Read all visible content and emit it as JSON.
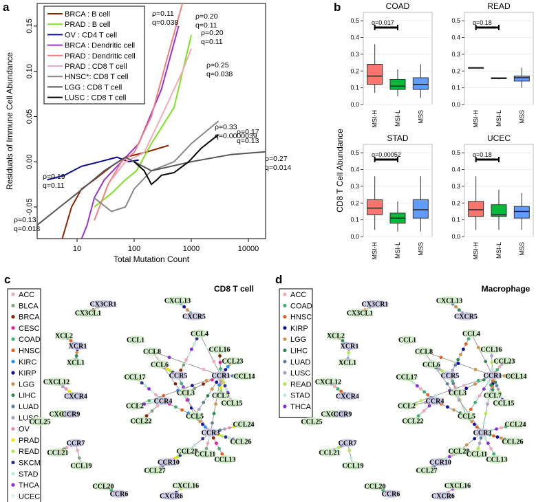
{
  "panels": {
    "a": "a",
    "b": "b",
    "c": "c",
    "d": "d"
  },
  "chart_data": [
    {
      "type": "line",
      "panel": "a",
      "xlabel": "Total Mutation Count",
      "ylabel": "Residuals of Immune Cell Abundance",
      "xscale": "log",
      "xlim": [
        2,
        20000
      ],
      "ylim": [
        -0.085,
        0.175
      ],
      "xticks": [
        "10",
        "100",
        "1000",
        "10000"
      ],
      "yticks": [
        "-0.05",
        "0.00",
        "0.05",
        "0.10",
        "0.15"
      ],
      "legend_position": "top-left",
      "series": [
        {
          "name": "BRCA : B cell",
          "color": "#8B2500",
          "points": [
            [
              5.5,
              -0.085
            ],
            [
              8,
              -0.05
            ],
            [
              12,
              -0.03
            ],
            [
              20,
              -0.02
            ],
            [
              40,
              -0.005
            ],
            [
              70,
              0.005
            ],
            [
              150,
              0.01
            ],
            [
              400,
              0.018
            ]
          ]
        },
        {
          "name": "PRAD : B cell",
          "color": "#7CE31D",
          "points": [
            [
              20,
              -0.05
            ],
            [
              40,
              -0.035
            ],
            [
              70,
              -0.02
            ],
            [
              110,
              -0.01
            ],
            [
              200,
              0.02
            ],
            [
              500,
              0.06
            ],
            [
              1000,
              0.14
            ]
          ]
        },
        {
          "name": "OV : CD4 T cell",
          "color": "#0A0A8C",
          "points": [
            [
              3,
              -0.02
            ],
            [
              6,
              -0.015
            ],
            [
              12,
              -0.005
            ],
            [
              25,
              0.0
            ],
            [
              50,
              0.005
            ],
            [
              80,
              0.0
            ],
            [
              120,
              0.002
            ]
          ]
        },
        {
          "name": "BRCA : Dendritic cell",
          "color": "#9A32CD",
          "points": [
            [
              12,
              -0.085
            ],
            [
              15,
              -0.07
            ],
            [
              20,
              -0.04
            ],
            [
              30,
              -0.02
            ],
            [
              60,
              0.0
            ],
            [
              120,
              0.02
            ],
            [
              300,
              0.08
            ],
            [
              600,
              0.15
            ]
          ]
        },
        {
          "name": "PRAD : Dendritic cell",
          "color": "#F08080",
          "points": [
            [
              20,
              -0.065
            ],
            [
              35,
              -0.025
            ],
            [
              60,
              0.0
            ],
            [
              100,
              0.01
            ],
            [
              200,
              0.05
            ],
            [
              400,
              0.12
            ],
            [
              700,
              0.175
            ]
          ]
        },
        {
          "name": "PRAD : CD8 T cell",
          "color": "#F4A9B8",
          "points": [
            [
              40,
              -0.02
            ],
            [
              70,
              0.0
            ],
            [
              150,
              0.01
            ],
            [
              300,
              0.05
            ],
            [
              700,
              0.1
            ],
            [
              1000,
              0.125
            ]
          ]
        },
        {
          "name": "HNSC*: CD8 T cell",
          "color": "#888888",
          "points": [
            [
              20,
              -0.04
            ],
            [
              40,
              -0.055
            ],
            [
              70,
              -0.05
            ],
            [
              100,
              -0.03
            ],
            [
              200,
              -0.01
            ],
            [
              500,
              0.0
            ],
            [
              1000,
              0.02
            ],
            [
              3000,
              0.045
            ]
          ]
        },
        {
          "name": "LGG : CD8 T cell",
          "color": "#555555",
          "points": [
            [
              2,
              -0.07
            ],
            [
              5,
              -0.05
            ],
            [
              10,
              -0.035
            ],
            [
              30,
              -0.01
            ],
            [
              70,
              0.005
            ],
            [
              200,
              -0.01
            ],
            [
              1000,
              0.0
            ],
            [
              5000,
              0.008
            ],
            [
              20000,
              0.011
            ]
          ]
        },
        {
          "name": "LUSC : CD8 T cell",
          "color": "#000000",
          "points": [
            [
              100,
              0.0
            ],
            [
              150,
              -0.01
            ],
            [
              200,
              -0.025
            ],
            [
              250,
              -0.02
            ],
            [
              300,
              -0.015
            ],
            [
              500,
              -0.012
            ],
            [
              900,
              0.0
            ],
            [
              1500,
              0.015
            ],
            [
              3000,
              0.03
            ]
          ]
        }
      ],
      "annotations": [
        {
          "rho": "ρ=0.11",
          "q": "q=0.038"
        },
        {
          "rho": "ρ=0.20",
          "q": "q=0.11"
        },
        {
          "rho": "ρ=0.20",
          "q": "q=0.11"
        },
        {
          "rho": "ρ=0.25",
          "q": "q=0.038"
        },
        {
          "rho": "ρ=0.33",
          "q": "q=0.0000039"
        },
        {
          "rho": "ρ=0.17",
          "q": "q=0.13"
        },
        {
          "rho": "ρ=0.27",
          "q": "q=0.014"
        },
        {
          "rho": "ρ=0.19",
          "q": "q=0.11"
        },
        {
          "rho": "ρ=0.13",
          "q": "q=0.018"
        }
      ]
    },
    {
      "type": "box",
      "panel": "b",
      "ylabel": "CD8 T Cell Abundance",
      "categories": [
        "MSI-H",
        "MSI-L",
        "MSS"
      ],
      "yticks": [
        "0.0",
        "0.1",
        "0.2",
        "0.3",
        "0.4",
        "0.5"
      ],
      "ylim": [
        0,
        0.55
      ],
      "colors": [
        "#F8766D",
        "#00BA38",
        "#619CFF"
      ],
      "subplots": [
        {
          "title": "COAD",
          "qlabel": "q=0.017",
          "boxes": [
            [
              0.07,
              0.12,
              0.17,
              0.24,
              0.36
            ],
            [
              0.05,
              0.09,
              0.11,
              0.15,
              0.21
            ],
            [
              0.04,
              0.09,
              0.12,
              0.16,
              0.24
            ]
          ]
        },
        {
          "title": "READ",
          "qlabel": "q=0.18",
          "boxes": [
            [
              0.22,
              0.22,
              0.22,
              0.22,
              0.22
            ],
            [
              0.15,
              0.155,
              0.155,
              0.16,
              0.16
            ],
            [
              0.1,
              0.14,
              0.16,
              0.17,
              0.22
            ]
          ]
        },
        {
          "title": "STAD",
          "qlabel": "q=0.00052",
          "boxes": [
            [
              0.04,
              0.13,
              0.17,
              0.22,
              0.36
            ],
            [
              0.03,
              0.08,
              0.11,
              0.14,
              0.21
            ],
            [
              0.03,
              0.11,
              0.16,
              0.22,
              0.36
            ]
          ]
        },
        {
          "title": "UCEC",
          "qlabel": "q=0.18",
          "boxes": [
            [
              0.04,
              0.12,
              0.16,
              0.21,
              0.36
            ],
            [
              0.04,
              0.12,
              0.13,
              0.19,
              0.28
            ],
            [
              0.04,
              0.11,
              0.15,
              0.18,
              0.26
            ]
          ]
        }
      ]
    },
    {
      "type": "network",
      "panel": "c",
      "title": "CD8 T cell",
      "legend": [
        {
          "name": "ACC",
          "color": "#F4A9B8"
        },
        {
          "name": "BLCA",
          "color": "#7FA67F"
        },
        {
          "name": "BRCA",
          "color": "#8B2500"
        },
        {
          "name": "CESC",
          "color": "#E020A0"
        },
        {
          "name": "COAD",
          "color": "#3CB371"
        },
        {
          "name": "HNSC",
          "color": "#E8601C"
        },
        {
          "name": "KIRC",
          "color": "#1E90FF"
        },
        {
          "name": "KIRP",
          "color": "#1010A0"
        },
        {
          "name": "LGG",
          "color": "#D2914A"
        },
        {
          "name": "LIHC",
          "color": "#2E8B57"
        },
        {
          "name": "LUAD",
          "color": "#5F7F9F"
        },
        {
          "name": "LUSC",
          "color": "#AFA0C8"
        },
        {
          "name": "OV",
          "color": "#F48CAE"
        },
        {
          "name": "PRAD",
          "color": "#F2E600"
        },
        {
          "name": "READ",
          "color": "#AEEA4B"
        },
        {
          "name": "SKCM",
          "color": "#2F2F90"
        },
        {
          "name": "STAD",
          "color": "#BFE9D9"
        },
        {
          "name": "THCA",
          "color": "#8A2BE2"
        },
        {
          "name": "UCEC",
          "color": "#E0F0F0"
        }
      ]
    },
    {
      "type": "network",
      "panel": "d",
      "title": "Macrophage",
      "legend": [
        {
          "name": "ACC",
          "color": "#F4A9B8"
        },
        {
          "name": "COAD",
          "color": "#3CB371"
        },
        {
          "name": "HNSC",
          "color": "#E8601C"
        },
        {
          "name": "KIRP",
          "color": "#1010A0"
        },
        {
          "name": "LGG",
          "color": "#D2914A"
        },
        {
          "name": "LIHC",
          "color": "#2E8B57"
        },
        {
          "name": "LUAD",
          "color": "#5F7F9F"
        },
        {
          "name": "LUSC",
          "color": "#AFA0C8"
        },
        {
          "name": "READ",
          "color": "#AEEA4B"
        },
        {
          "name": "STAD",
          "color": "#BFE9D9"
        },
        {
          "name": "THCA",
          "color": "#8A2BE2"
        }
      ]
    }
  ],
  "network_nodes": {
    "ligands": [
      "CX3CL1",
      "XCL2",
      "XCL1",
      "CXCL12",
      "CXCL9",
      "CCL25",
      "CCL21",
      "CCL19",
      "CCL20",
      "CXCL13",
      "CCL1",
      "CCL8",
      "CCL4",
      "CCL16",
      "CCL23",
      "CCL14",
      "CCL17",
      "CCL3",
      "CCL5",
      "CCL7",
      "CCL15",
      "CCL2",
      "CCL22",
      "CCL24",
      "CCL26",
      "CCL28",
      "CCL11",
      "CCL13",
      "CCL27",
      "CXCL16"
    ],
    "receptors": [
      "CX3CR1",
      "XCR1",
      "CXCR4",
      "CCR9",
      "CCR7",
      "CCR6",
      "CXCR5",
      "CCR8",
      "CCR5",
      "CCR1",
      "CCR4",
      "CCR3",
      "CCR10",
      "CXCR6"
    ]
  }
}
